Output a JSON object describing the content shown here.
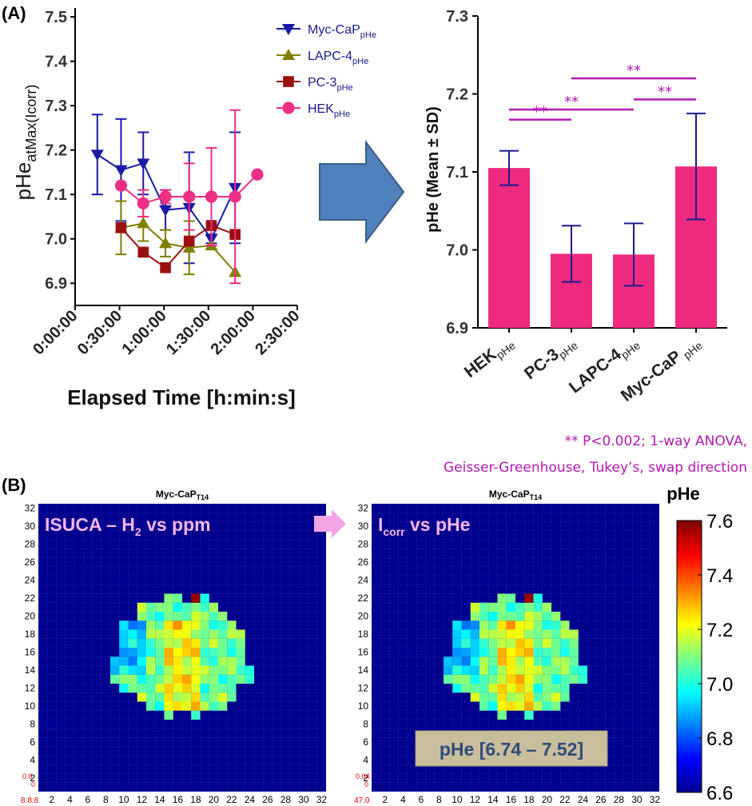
{
  "panel_a": {
    "label": "(A)",
    "legend": [
      {
        "name": "Myc-CaP",
        "sub": "pHe",
        "color": "#1a1aa6",
        "marker": "triangle-down"
      },
      {
        "name": "LAPC-4",
        "sub": "pHe",
        "color": "#808000",
        "marker": "triangle-up"
      },
      {
        "name": "PC-3",
        "sub": "pHe",
        "color": "#9b0f0f",
        "marker": "square"
      },
      {
        "name": "HEK",
        "sub": "pHe",
        "color": "#ee2f84",
        "marker": "circle"
      }
    ],
    "significance": {
      "star": "**",
      "note_line1": "** P<0.002; 1-way ANOVA,",
      "note_line2": "Geisser-Greenhouse, Tukey’s, swap direction"
    }
  },
  "chart_data": [
    {
      "type": "line",
      "title": "",
      "xlabel": "Elapsed Time [h:min:s]",
      "ylabel": "pHe",
      "ylabel_sub": "atMax(Icorr)",
      "x_ticks": [
        "0:00:00",
        "0:30:00",
        "1:00:00",
        "1:30:00",
        "2:00:00",
        "2:30:00"
      ],
      "x_tick_minutes": [
        0,
        30,
        60,
        90,
        120,
        150
      ],
      "xlim": [
        0,
        150
      ],
      "y_ticks": [
        "6.9",
        "7.0",
        "7.1",
        "7.2",
        "7.3",
        "7.4",
        "7.5"
      ],
      "y_tick_values": [
        6.9,
        7.0,
        7.1,
        7.2,
        7.3,
        7.4,
        7.5
      ],
      "ylim": [
        6.85,
        7.52
      ],
      "series": [
        {
          "name": "Myc-CaP",
          "sub": "pHe",
          "color": "#1a1aa6",
          "marker": "triangle-down",
          "points": [
            {
              "x": 15,
              "y": 7.19,
              "err": 0.09
            },
            {
              "x": 31,
              "y": 7.155,
              "err": 0.115
            },
            {
              "x": 46,
              "y": 7.17,
              "err": 0.07
            },
            {
              "x": 61,
              "y": 7.065,
              "err": 0.045
            },
            {
              "x": 77,
              "y": 7.07,
              "err": 0.125
            },
            {
              "x": 92,
              "y": 7.0,
              "err": 0.01
            },
            {
              "x": 108,
              "y": 7.115,
              "err": 0.125
            }
          ]
        },
        {
          "name": "LAPC-4",
          "sub": "pHe",
          "color": "#808000",
          "marker": "triangle-up",
          "points": [
            {
              "x": 31,
              "y": 7.025,
              "err": 0.06
            },
            {
              "x": 46,
              "y": 7.035,
              "err": 0.04
            },
            {
              "x": 61,
              "y": 6.99,
              "err": 0.03
            },
            {
              "x": 77,
              "y": 6.98,
              "err": 0.06
            },
            {
              "x": 92,
              "y": 6.985,
              "err": 0.0
            },
            {
              "x": 108,
              "y": 6.925,
              "err": 0.0
            }
          ]
        },
        {
          "name": "PC-3",
          "sub": "pHe",
          "color": "#9b0f0f",
          "marker": "square",
          "points": [
            {
              "x": 31,
              "y": 7.025,
              "err": 0.0
            },
            {
              "x": 46,
              "y": 6.97,
              "err": 0.0
            },
            {
              "x": 61,
              "y": 6.935,
              "err": 0.0
            },
            {
              "x": 77,
              "y": 6.995,
              "err": 0.0
            },
            {
              "x": 92,
              "y": 7.03,
              "err": 0.0
            },
            {
              "x": 108,
              "y": 7.01,
              "err": 0.0
            }
          ]
        },
        {
          "name": "HEK",
          "sub": "pHe",
          "color": "#ee2f84",
          "marker": "circle",
          "points": [
            {
              "x": 31,
              "y": 7.12,
              "err": 0.0
            },
            {
              "x": 46,
              "y": 7.08,
              "err": 0.03
            },
            {
              "x": 61,
              "y": 7.095,
              "err": 0.015
            },
            {
              "x": 77,
              "y": 7.095,
              "err": 0.075
            },
            {
              "x": 92,
              "y": 7.095,
              "err": 0.11
            },
            {
              "x": 108,
              "y": 7.095,
              "err": 0.195
            },
            {
              "x": 123,
              "y": 7.145,
              "err": 0.0
            }
          ]
        }
      ]
    },
    {
      "type": "bar",
      "title": "",
      "ylabel": "pHe (Mean ± SD)",
      "categories": [
        {
          "name": "HEK",
          "sub": "pHe"
        },
        {
          "name": "PC-3",
          "sub": "pHe"
        },
        {
          "name": "LAPC-4",
          "sub": "pHe"
        },
        {
          "name": "Myc-CaP",
          "sub": " pHe"
        }
      ],
      "values": [
        7.105,
        6.995,
        6.994,
        7.107
      ],
      "errors": [
        0.022,
        0.036,
        0.04,
        0.068
      ],
      "bar_color": "#ee2a7f",
      "error_color": "#1a1a8c",
      "y_ticks": [
        "6.9",
        "7.0",
        "7.1",
        "7.2",
        "7.3"
      ],
      "y_tick_values": [
        6.9,
        7.0,
        7.1,
        7.2,
        7.3
      ],
      "ylim": [
        6.9,
        7.3
      ],
      "significance": [
        {
          "from": 0,
          "to": 1,
          "y": 7.167,
          "label": "**"
        },
        {
          "from": 0,
          "to": 2,
          "y": 7.18,
          "label": "**"
        },
        {
          "from": 1,
          "to": 3,
          "y": 7.22,
          "label": "**"
        },
        {
          "from": 2,
          "to": 3,
          "y": 7.193,
          "label": "**"
        }
      ]
    },
    {
      "type": "heatmap",
      "title": "Myc-CaP",
      "title_sub": "T14",
      "overlay_label": "ISUCA – H",
      "overlay_label_sub": "2",
      "overlay_label_rest": " vs ppm",
      "x_ticks": [
        "2",
        "4",
        "6",
        "8",
        "10",
        "12",
        "14",
        "16",
        "18",
        "20",
        "22",
        "24",
        "26",
        "28",
        "30",
        "32"
      ],
      "y_ticks": [
        "32",
        "30",
        "28",
        "26",
        "24",
        "22",
        "20",
        "18",
        "16",
        "14",
        "12",
        "10",
        "8",
        "6",
        "4",
        "2"
      ],
      "corner_labels": [
        "0.0",
        "0",
        "8.8.8"
      ],
      "grid_size": 32,
      "background_color": "#00008f"
    },
    {
      "type": "heatmap",
      "title": "Myc-CaP",
      "title_sub": "T14",
      "overlay_label": "I",
      "overlay_label_sub": "corr",
      "overlay_label_rest": " vs pHe",
      "range_box": "pHe [6.74 – 7.52]",
      "x_ticks": [
        "2",
        "4",
        "6",
        "8",
        "10",
        "12",
        "14",
        "16",
        "18",
        "20",
        "22",
        "24",
        "26",
        "28",
        "30",
        "32"
      ],
      "y_ticks": [
        "32",
        "30",
        "28",
        "26",
        "24",
        "22",
        "20",
        "18",
        "16",
        "14",
        "12",
        "10",
        "8",
        "6",
        "4",
        "2"
      ],
      "corner_labels": [
        "0.04",
        "0",
        "47.0"
      ],
      "grid_size": 32,
      "background_color": "#00008f"
    }
  ],
  "panel_b": {
    "label": "(B)",
    "colorbar_title": "pHe",
    "colorbar_ticks": [
      "7.6",
      "7.4",
      "7.2",
      "7.0",
      "6.8",
      "6.6"
    ],
    "colorbar_values": [
      7.6,
      7.4,
      7.2,
      7.0,
      6.8,
      6.6
    ],
    "colorbar_range": [
      6.6,
      7.6
    ],
    "arrow_color": "#f2a6e6"
  },
  "colors": {
    "arrow_fill": "#4f81bd",
    "arrow_stroke": "#385d8a",
    "significance": "#b319b3"
  }
}
